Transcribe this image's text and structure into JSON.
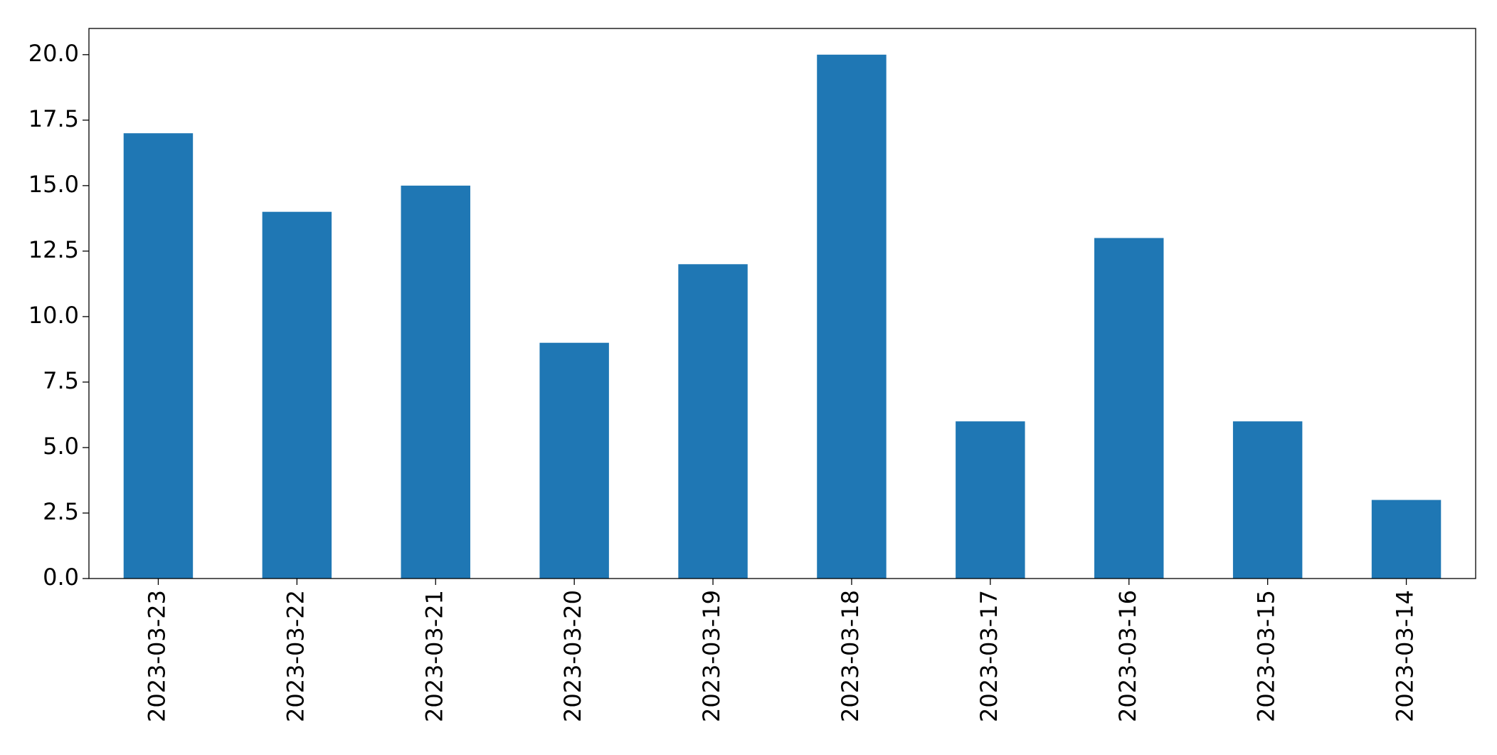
{
  "chart_data": {
    "type": "bar",
    "categories": [
      "2023-03-23",
      "2023-03-22",
      "2023-03-21",
      "2023-03-20",
      "2023-03-19",
      "2023-03-18",
      "2023-03-17",
      "2023-03-16",
      "2023-03-15",
      "2023-03-14"
    ],
    "values": [
      17,
      14,
      15,
      9,
      12,
      20,
      6,
      13,
      6,
      3
    ],
    "color": "#1f77b4",
    "ylim": [
      0,
      21
    ],
    "yticks": [
      {
        "value": 0,
        "label": "0.0"
      },
      2.5,
      {
        "value": 5,
        "label": "5.0"
      },
      7.5,
      {
        "value": 10,
        "label": "10.0"
      },
      12.5,
      {
        "value": 15,
        "label": "15.0"
      },
      17.5,
      {
        "value": 20,
        "label": "20.0"
      }
    ],
    "grid": false
  }
}
